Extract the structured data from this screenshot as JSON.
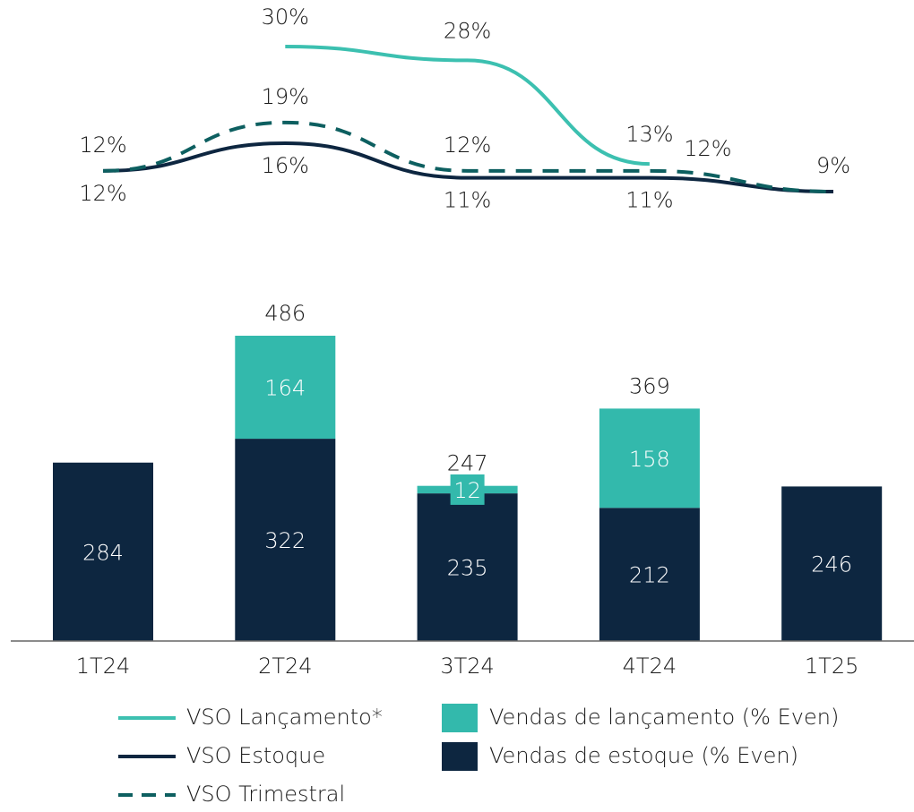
{
  "chart_data": {
    "type": "bar_line",
    "categories": [
      "1T24",
      "2T24",
      "3T24",
      "4T24",
      "1T25"
    ],
    "bar_series": [
      {
        "name": "Vendas de estoque (% Even)",
        "color": "#0d2640",
        "values": [
          284,
          322,
          235,
          212,
          246
        ]
      },
      {
        "name": "Vendas de lançamento (% Even)",
        "color": "#33b9ac",
        "values": [
          null,
          164,
          12,
          158,
          null
        ]
      }
    ],
    "totals": [
      null,
      486,
      247,
      369,
      null
    ],
    "line_series": [
      {
        "name": "VSO Lançamento*",
        "color": "#3cc0b0",
        "dash": false,
        "values": [
          null,
          30,
          28,
          13,
          null
        ],
        "value_labels": [
          null,
          "30%",
          "28%",
          "13%",
          null
        ]
      },
      {
        "name": "VSO Estoque",
        "color": "#0d2640",
        "dash": false,
        "values": [
          12,
          16,
          11,
          11,
          9
        ],
        "value_labels": [
          "12%",
          "16%",
          "11%",
          "11%",
          "9%"
        ]
      },
      {
        "name": "VSO Trimestral",
        "color": "#0d5f60",
        "dash": true,
        "values": [
          12,
          19,
          12,
          12,
          9
        ],
        "value_labels": [
          "12%",
          "19%",
          "12%",
          "12%",
          null
        ]
      }
    ]
  }
}
